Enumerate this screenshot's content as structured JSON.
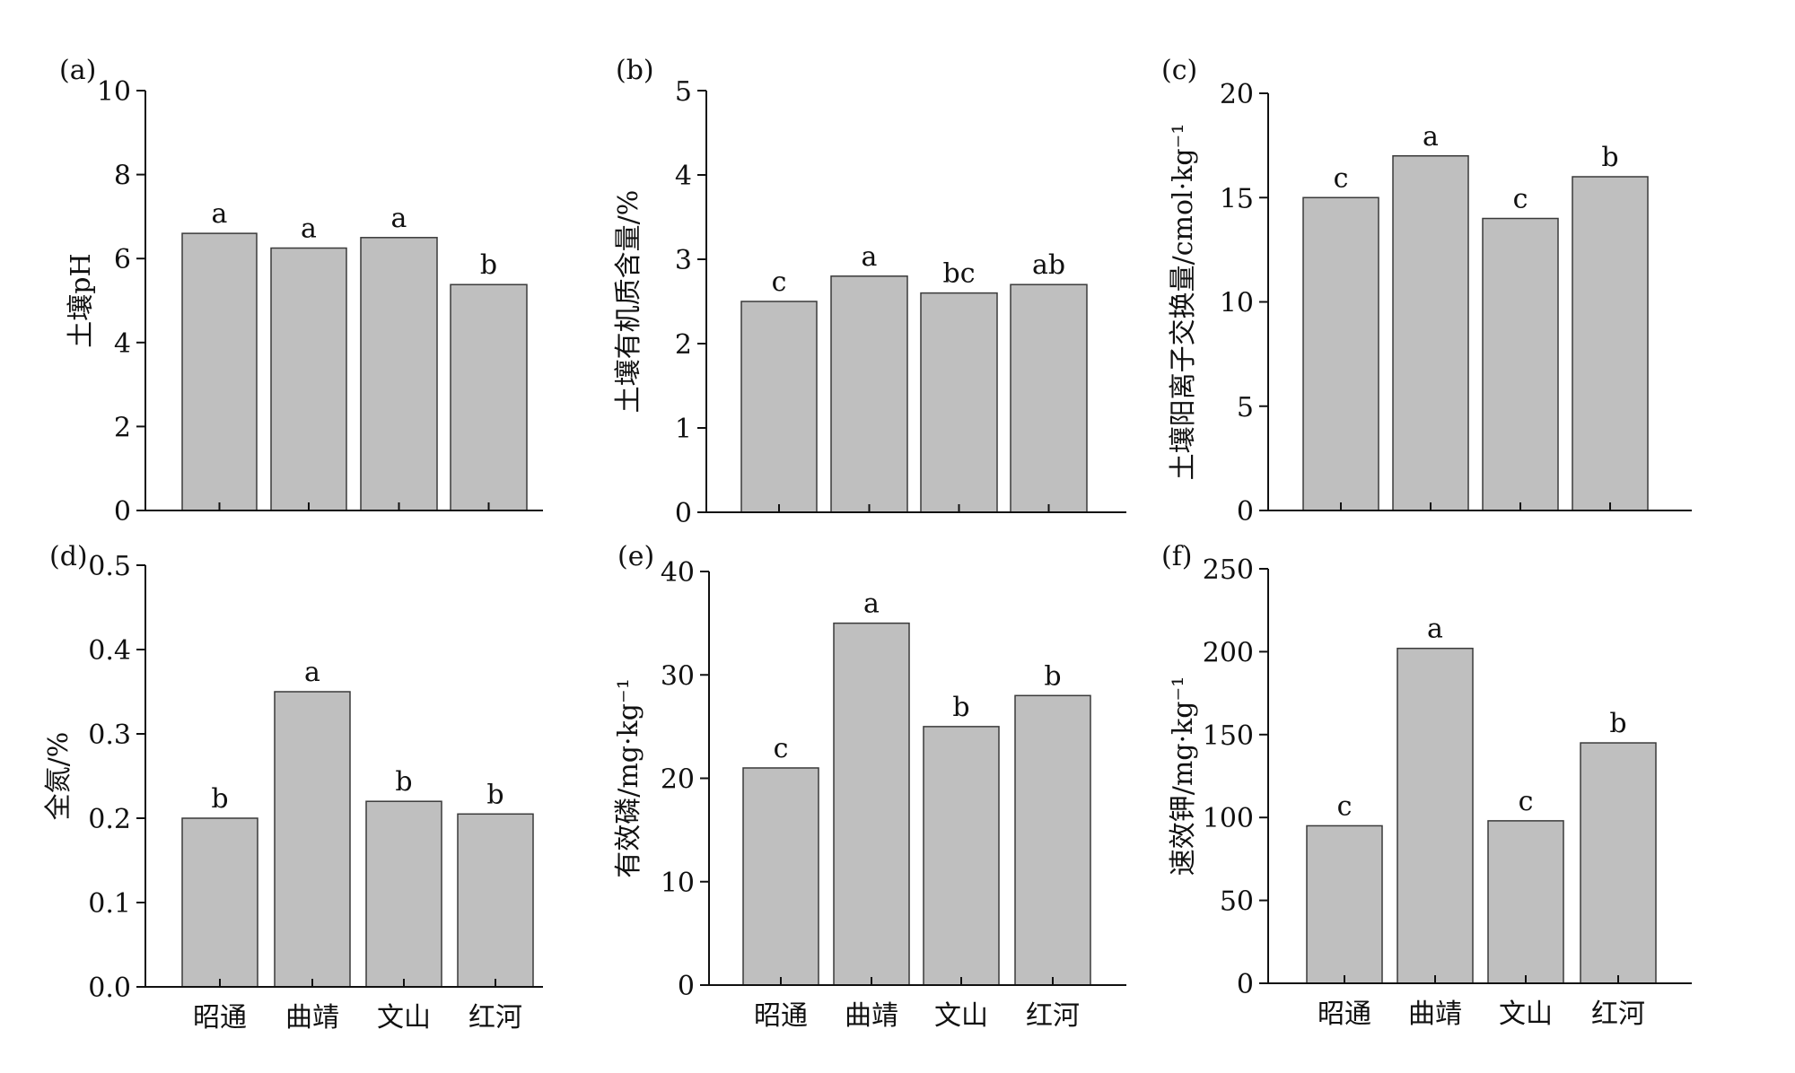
{
  "chart_data": [
    {
      "type": "bar",
      "panel_label": "(a)",
      "ylabel": "土壤pH",
      "categories": [
        "",
        "",
        "",
        ""
      ],
      "values": [
        6.6,
        6.25,
        6.5,
        5.38
      ],
      "significance": [
        "a",
        "a",
        "a",
        "b"
      ],
      "ylim": [
        0,
        10
      ],
      "yticks": [
        "0",
        "2",
        "4",
        "6",
        "8",
        "10"
      ],
      "ytick_values": [
        0,
        2,
        4,
        6,
        8,
        10
      ]
    },
    {
      "type": "bar",
      "panel_label": "(b)",
      "ylabel": "土壤有机质含量/%",
      "categories": [
        "",
        "",
        "",
        ""
      ],
      "values": [
        2.5,
        2.8,
        2.6,
        2.7
      ],
      "significance": [
        "c",
        "a",
        "bc",
        "ab"
      ],
      "ylim": [
        0,
        5
      ],
      "yticks": [
        "0",
        "1",
        "2",
        "3",
        "4",
        "5"
      ],
      "ytick_values": [
        0,
        1,
        2,
        3,
        4,
        5
      ]
    },
    {
      "type": "bar",
      "panel_label": "(c)",
      "ylabel": "土壤阳离子交换量/cmol·kg⁻¹",
      "categories": [
        "",
        "",
        "",
        ""
      ],
      "values": [
        15,
        17,
        14,
        16
      ],
      "significance": [
        "c",
        "a",
        "c",
        "b"
      ],
      "ylim": [
        0,
        20
      ],
      "yticks": [
        "0",
        "5",
        "10",
        "15",
        "20"
      ],
      "ytick_values": [
        0,
        5,
        10,
        15,
        20
      ]
    },
    {
      "type": "bar",
      "panel_label": "(d)",
      "ylabel": "全氮/%",
      "categories": [
        "昭通",
        "曲靖",
        "文山",
        "红河"
      ],
      "values": [
        0.2,
        0.35,
        0.22,
        0.205
      ],
      "significance": [
        "b",
        "a",
        "b",
        "b"
      ],
      "ylim": [
        0,
        0.5
      ],
      "yticks": [
        "0.0",
        "0.1",
        "0.2",
        "0.3",
        "0.4",
        "0.5"
      ],
      "ytick_values": [
        0,
        0.1,
        0.2,
        0.3,
        0.4,
        0.5
      ]
    },
    {
      "type": "bar",
      "panel_label": "(e)",
      "ylabel": "有效磷/mg·kg⁻¹",
      "categories": [
        "昭通",
        "曲靖",
        "文山",
        "红河"
      ],
      "values": [
        21,
        35,
        25,
        28
      ],
      "significance": [
        "c",
        "a",
        "b",
        "b"
      ],
      "ylim": [
        0,
        40
      ],
      "yticks": [
        "0",
        "10",
        "20",
        "30",
        "40"
      ],
      "ytick_values": [
        0,
        10,
        20,
        30,
        40
      ]
    },
    {
      "type": "bar",
      "panel_label": "(f)",
      "ylabel": "速效钾/mg·kg⁻¹",
      "categories": [
        "昭通",
        "曲靖",
        "文山",
        "红河"
      ],
      "values": [
        95,
        202,
        98,
        145
      ],
      "significance": [
        "c",
        "a",
        "c",
        "b"
      ],
      "ylim": [
        0,
        250
      ],
      "yticks": [
        "0",
        "50",
        "100",
        "150",
        "200",
        "250"
      ],
      "ytick_values": [
        0,
        50,
        100,
        150,
        200,
        250
      ]
    }
  ],
  "colors": {
    "bar_fill": "#bfbfbf",
    "bar_stroke": "#3a3a3a",
    "axis": "#111111"
  }
}
